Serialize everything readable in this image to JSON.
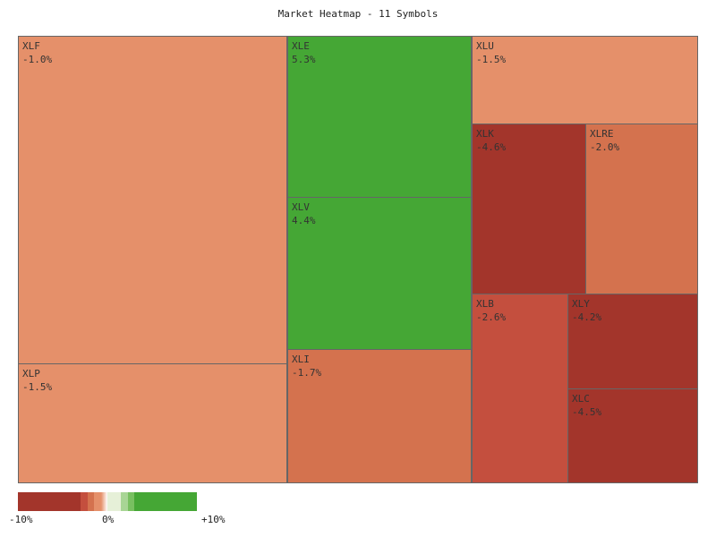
{
  "chart_data": {
    "type": "heatmap",
    "subtype": "treemap",
    "title": "Market Heatmap - 11 Symbols",
    "tiles": [
      {
        "symbol": "XLF",
        "change": -1.0,
        "label": "-1.0%",
        "color": "#e5906a"
      },
      {
        "symbol": "XLP",
        "change": -1.5,
        "label": "-1.5%",
        "color": "#e5906a"
      },
      {
        "symbol": "XLE",
        "change": 5.3,
        "label": "5.3%",
        "color": "#45a735"
      },
      {
        "symbol": "XLV",
        "change": 4.4,
        "label": "4.4%",
        "color": "#45a735"
      },
      {
        "symbol": "XLI",
        "change": -1.7,
        "label": "-1.7%",
        "color": "#d4724e"
      },
      {
        "symbol": "XLU",
        "change": -1.5,
        "label": "-1.5%",
        "color": "#e5906a"
      },
      {
        "symbol": "XLK",
        "change": -4.6,
        "label": "-4.6%",
        "color": "#a3352b"
      },
      {
        "symbol": "XLRE",
        "change": -2.0,
        "label": "-2.0%",
        "color": "#d4724e"
      },
      {
        "symbol": "XLB",
        "change": -2.6,
        "label": "-2.6%",
        "color": "#c44f3e"
      },
      {
        "symbol": "XLY",
        "change": -4.2,
        "label": "-4.2%",
        "color": "#a3352b"
      },
      {
        "symbol": "XLC",
        "change": -4.5,
        "label": "-4.5%",
        "color": "#a3352b"
      }
    ],
    "legend": {
      "min_label": "-10%",
      "mid_label": "0%",
      "max_label": "+10%",
      "range": [
        -10,
        10
      ],
      "colors": [
        "#a3352b",
        "#c44f3e",
        "#d4724e",
        "#e5906a",
        "#ffffff",
        "#e6f0d8",
        "#a8d595",
        "#78c060",
        "#45a735"
      ]
    }
  }
}
